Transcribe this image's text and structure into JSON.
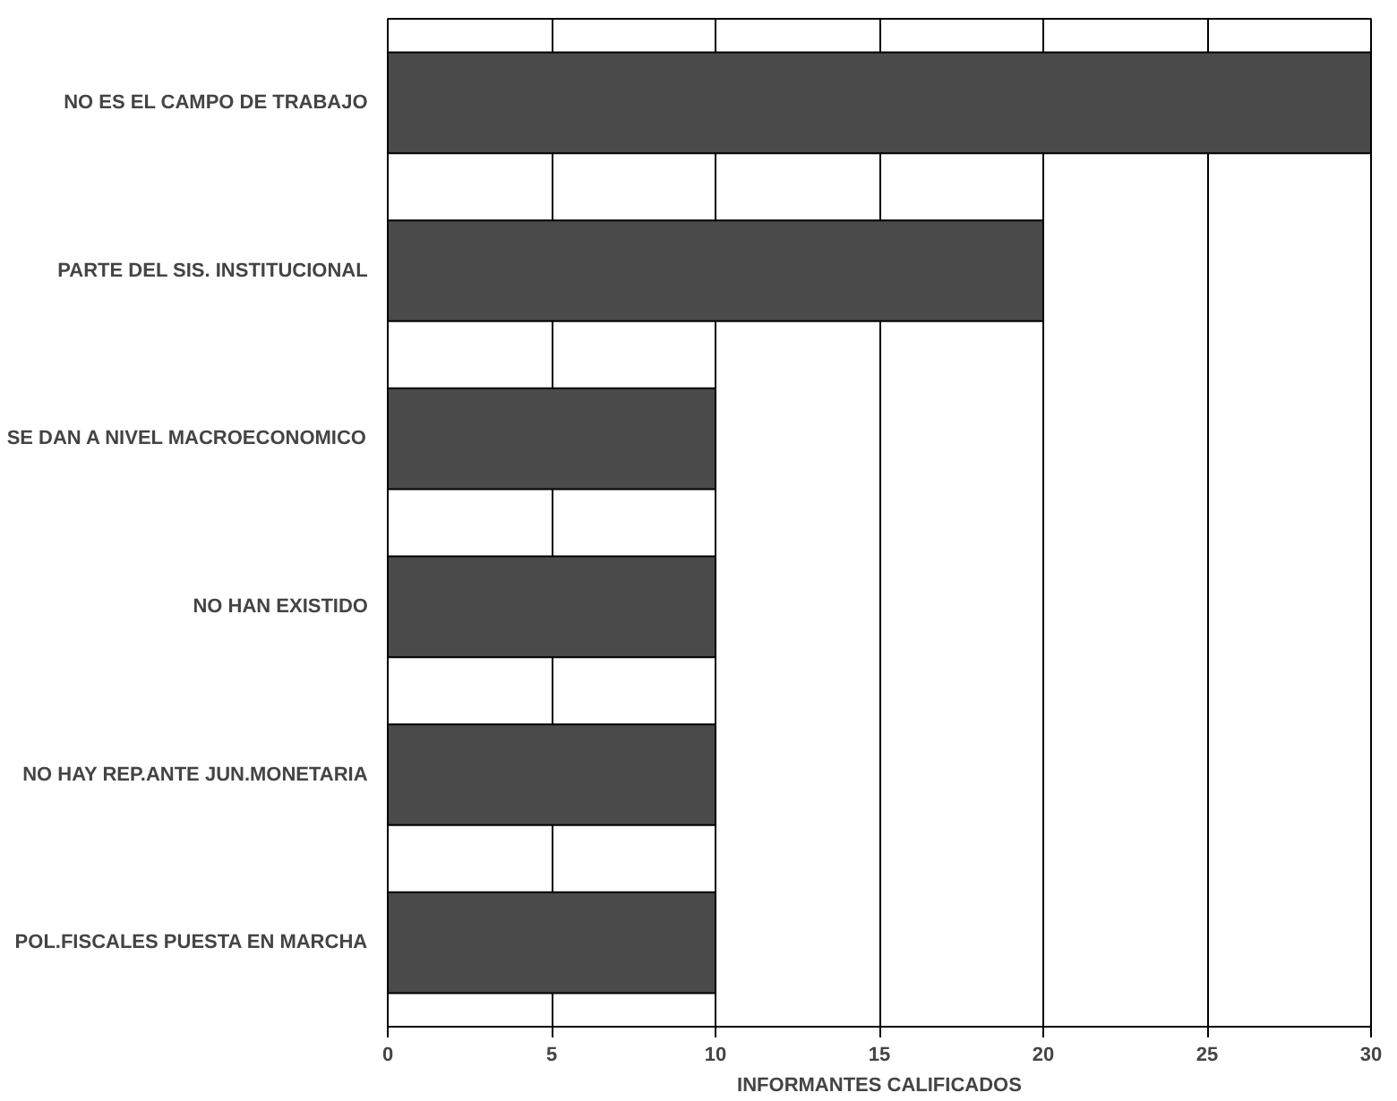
{
  "chart_data": {
    "type": "bar",
    "orientation": "horizontal",
    "xlabel": "INFORMANTES CALIFICADOS",
    "categories": [
      "NO ES EL CAMPO DE TRABAJO",
      "PARTE DEL SIS. INSTITUCIONAL",
      "SE DAN A NIVEL MACROECONOMICO",
      "NO HAN EXISTIDO",
      "NO HAY REP.ANTE JUN.MONETARIA",
      "POL.FISCALES PUESTA EN MARCHA"
    ],
    "values": [
      30,
      20,
      10,
      10,
      10,
      10
    ],
    "color": "#4a4a4a",
    "xlim": [
      0,
      30
    ],
    "xticks": [
      0,
      5,
      10,
      15,
      20,
      25,
      30
    ],
    "grid": "x"
  }
}
